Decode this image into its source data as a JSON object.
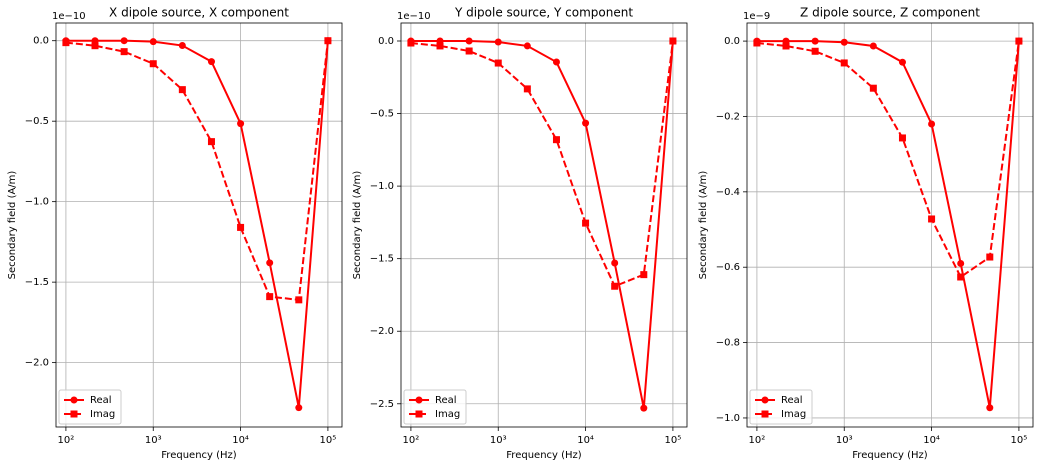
{
  "chart_data": [
    {
      "type": "line",
      "title": "X dipole source, X component",
      "xlabel": "Frequency (Hz)",
      "ylabel": "Secondary field (A/m)",
      "y_offset": "1e−10",
      "x": [
        100,
        215.4,
        464.2,
        1000,
        2154,
        4642,
        10000,
        21544,
        46416,
        100000
      ],
      "series": [
        {
          "name": "Real",
          "color": "#ff0000",
          "marker": "circle",
          "linestyle": "solid",
          "values": [
            0,
            0,
            0,
            -0.006,
            -0.03,
            -0.13,
            -0.515,
            -1.38,
            -2.28,
            0
          ]
        },
        {
          "name": "Imag",
          "color": "#ff0000",
          "marker": "square",
          "linestyle": "dashed",
          "values": [
            -0.012,
            -0.031,
            -0.068,
            -0.143,
            -0.304,
            -0.627,
            -1.16,
            -1.59,
            -1.61,
            0
          ]
        }
      ],
      "log_x": true,
      "xlim": [
        77,
        145000
      ],
      "xticks": [
        {
          "value": 100,
          "label": "10²"
        },
        {
          "value": 1000,
          "label": "10³"
        },
        {
          "value": 10000,
          "label": "10⁴"
        },
        {
          "value": 100000,
          "label": "10⁵"
        }
      ],
      "ylim": [
        -2.4,
        0.11
      ],
      "yticks": [
        {
          "value": 0,
          "label": "0.0"
        },
        {
          "value": -0.5,
          "label": "−0.5"
        },
        {
          "value": -1,
          "label": "−1.0"
        },
        {
          "value": -1.5,
          "label": "−1.5"
        },
        {
          "value": -2,
          "label": "−2.0"
        }
      ],
      "grid": true,
      "legend": "lower left"
    },
    {
      "type": "line",
      "title": "Y dipole source, Y component",
      "xlabel": "Frequency (Hz)",
      "ylabel": "Secondary field (A/m)",
      "y_offset": "1e−10",
      "x": [
        100,
        215.4,
        464.2,
        1000,
        2154,
        4642,
        10000,
        21544,
        46416,
        100000
      ],
      "series": [
        {
          "name": "Real",
          "color": "#ff0000",
          "marker": "circle",
          "linestyle": "solid",
          "values": [
            0,
            0,
            0,
            -0.007,
            -0.034,
            -0.145,
            -0.566,
            -1.53,
            -2.53,
            0
          ]
        },
        {
          "name": "Imag",
          "color": "#ff0000",
          "marker": "square",
          "linestyle": "dashed",
          "values": [
            -0.014,
            -0.034,
            -0.069,
            -0.152,
            -0.33,
            -0.68,
            -1.255,
            -1.69,
            -1.61,
            0
          ]
        }
      ],
      "log_x": true,
      "xlim": [
        77,
        145000
      ],
      "xticks": [
        {
          "value": 100,
          "label": "10²"
        },
        {
          "value": 1000,
          "label": "10³"
        },
        {
          "value": 10000,
          "label": "10⁴"
        },
        {
          "value": 100000,
          "label": "10⁵"
        }
      ],
      "ylim": [
        -2.66,
        0.124
      ],
      "yticks": [
        {
          "value": 0,
          "label": "0.0"
        },
        {
          "value": -0.5,
          "label": "−0.5"
        },
        {
          "value": -1,
          "label": "−1.0"
        },
        {
          "value": -1.5,
          "label": "−1.5"
        },
        {
          "value": -2,
          "label": "−2.0"
        },
        {
          "value": -2.5,
          "label": "−2.5"
        }
      ],
      "grid": true,
      "legend": "lower left"
    },
    {
      "type": "line",
      "title": "Z dipole source, Z component",
      "xlabel": "Frequency (Hz)",
      "ylabel": "Secondary field (A/m)",
      "y_offset": "1e−9",
      "x": [
        100,
        215.4,
        464.2,
        1000,
        2154,
        4642,
        10000,
        21544,
        46416,
        100000
      ],
      "series": [
        {
          "name": "Real",
          "color": "#ff0000",
          "marker": "circle",
          "linestyle": "solid",
          "values": [
            0,
            0,
            0,
            -0.003,
            -0.013,
            -0.056,
            -0.22,
            -0.59,
            -0.973,
            0
          ]
        },
        {
          "name": "Imag",
          "color": "#ff0000",
          "marker": "square",
          "linestyle": "dashed",
          "values": [
            -0.005,
            -0.013,
            -0.027,
            -0.058,
            -0.125,
            -0.257,
            -0.472,
            -0.626,
            -0.573,
            0
          ]
        }
      ],
      "log_x": true,
      "xlim": [
        77,
        145000
      ],
      "xticks": [
        {
          "value": 100,
          "label": "10²"
        },
        {
          "value": 1000,
          "label": "10³"
        },
        {
          "value": 10000,
          "label": "10⁴"
        },
        {
          "value": 100000,
          "label": "10⁵"
        }
      ],
      "ylim": [
        -1.024,
        0.048
      ],
      "yticks": [
        {
          "value": 0,
          "label": "0.0"
        },
        {
          "value": -0.2,
          "label": "−0.2"
        },
        {
          "value": -0.4,
          "label": "−0.4"
        },
        {
          "value": -0.6,
          "label": "−0.6"
        },
        {
          "value": -0.8,
          "label": "−0.8"
        },
        {
          "value": -1,
          "label": "−1.0"
        }
      ],
      "grid": true,
      "legend": "lower left"
    }
  ]
}
